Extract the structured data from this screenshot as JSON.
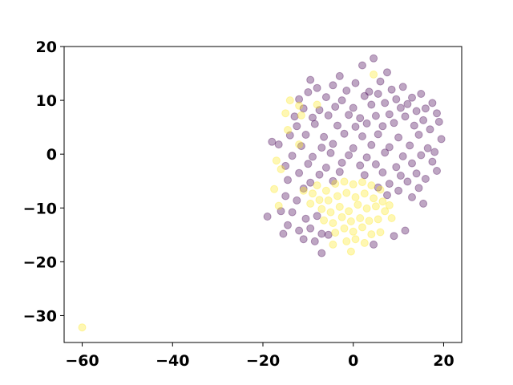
{
  "chart_data": {
    "type": "scatter",
    "title": "",
    "xlabel": "",
    "ylabel": "",
    "xlim": [
      -64,
      24
    ],
    "ylim": [
      -35,
      20
    ],
    "xticks": [
      -60,
      -40,
      -20,
      0,
      20
    ],
    "xtick_labels": [
      "−60",
      "−40",
      "−20",
      "0",
      "20"
    ],
    "yticks": [
      20,
      10,
      0,
      -10,
      -20,
      -30
    ],
    "ytick_labels": [
      "20",
      "10",
      "0",
      "−10",
      "−20",
      "−30"
    ],
    "grid": false,
    "legend": false,
    "point_opacity": 0.35,
    "series": [
      {
        "color": "#440154",
        "points": [
          [
            4.5,
            17.8
          ],
          [
            -9.5,
            13.8
          ],
          [
            -3,
            14.5
          ],
          [
            2,
            16.5
          ],
          [
            7.5,
            15.2
          ],
          [
            -8,
            12.3
          ],
          [
            -4.5,
            12.8
          ],
          [
            0.5,
            13.2
          ],
          [
            6,
            13.5
          ],
          [
            11,
            12.5
          ],
          [
            15,
            11.2
          ],
          [
            -10,
            11.5
          ],
          [
            -1.5,
            11.8
          ],
          [
            3.5,
            11.6
          ],
          [
            8.5,
            12
          ],
          [
            13,
            10.5
          ],
          [
            17.5,
            9.5
          ],
          [
            -12,
            10.2
          ],
          [
            -6,
            10.6
          ],
          [
            -2.5,
            10
          ],
          [
            2.5,
            10.8
          ],
          [
            5.5,
            11.2
          ],
          [
            9.5,
            10.2
          ],
          [
            12,
            9.3
          ],
          [
            16,
            8.5
          ],
          [
            -11,
            8.5
          ],
          [
            -7.5,
            8.2
          ],
          [
            -4,
            8.8
          ],
          [
            0,
            8.6
          ],
          [
            4,
            9.2
          ],
          [
            7,
            9.5
          ],
          [
            10.5,
            8.6
          ],
          [
            14,
            8
          ],
          [
            18.5,
            7.6
          ],
          [
            -13,
            7
          ],
          [
            -9,
            6.8
          ],
          [
            -5.5,
            7.2
          ],
          [
            -1,
            7.3
          ],
          [
            1.5,
            6.7
          ],
          [
            5,
            7.1
          ],
          [
            8,
            7.4
          ],
          [
            11.5,
            7
          ],
          [
            15.5,
            6.3
          ],
          [
            19,
            6
          ],
          [
            -12.5,
            5.2
          ],
          [
            -8.5,
            5.6
          ],
          [
            -3.5,
            5.3
          ],
          [
            0.5,
            5.1
          ],
          [
            3,
            5.7
          ],
          [
            6.5,
            5.2
          ],
          [
            9,
            5.8
          ],
          [
            13.5,
            5.3
          ],
          [
            17,
            4.6
          ],
          [
            -14,
            3.5
          ],
          [
            -10.5,
            3.6
          ],
          [
            -6.5,
            3.2
          ],
          [
            -2,
            3.8
          ],
          [
            2,
            3.3
          ],
          [
            5.5,
            3.7
          ],
          [
            10,
            3.1
          ],
          [
            14.5,
            3.6
          ],
          [
            19.5,
            2.8
          ],
          [
            -18,
            2.3
          ],
          [
            -16.5,
            1.8
          ],
          [
            -11.5,
            1.5
          ],
          [
            -7,
            1.2
          ],
          [
            -4.5,
            1.9
          ],
          [
            0,
            1.1
          ],
          [
            4,
            1.7
          ],
          [
            8,
            1.3
          ],
          [
            12.5,
            1.6
          ],
          [
            16.5,
            1.1
          ],
          [
            -13.5,
            -0.3
          ],
          [
            -9,
            -0.5
          ],
          [
            -5,
            0.2
          ],
          [
            -1,
            -0.2
          ],
          [
            3,
            -0.6
          ],
          [
            7,
            0.3
          ],
          [
            11,
            -0.4
          ],
          [
            15,
            -0.2
          ],
          [
            18,
            0.4
          ],
          [
            -15,
            -2.2
          ],
          [
            -10,
            -1.8
          ],
          [
            -6,
            -2.5
          ],
          [
            -2.5,
            -1.6
          ],
          [
            1.5,
            -2.1
          ],
          [
            5,
            -1.9
          ],
          [
            9.5,
            -2.4
          ],
          [
            13,
            -1.7
          ],
          [
            17.5,
            -1.4
          ],
          [
            -12,
            -3.5
          ],
          [
            -7.5,
            -3.8
          ],
          [
            -3,
            -3.3
          ],
          [
            2.5,
            -3.9
          ],
          [
            6.5,
            -3.4
          ],
          [
            10.5,
            -4
          ],
          [
            14,
            -3.6
          ],
          [
            18.5,
            -3.1
          ],
          [
            -14.5,
            -4.8
          ],
          [
            -9.5,
            -5.3
          ],
          [
            -4.5,
            -5
          ],
          [
            8,
            -5.5
          ],
          [
            12,
            -5.1
          ],
          [
            16,
            -4.6
          ],
          [
            -11,
            -6.4
          ],
          [
            5.5,
            -6.2
          ],
          [
            10,
            -6.8
          ],
          [
            14.5,
            -6.3
          ],
          [
            -15,
            -7.8
          ],
          [
            -12.5,
            -8.6
          ],
          [
            7.5,
            -7.6
          ],
          [
            13,
            -8
          ],
          [
            15.5,
            -9.2
          ],
          [
            -19,
            -11.6
          ],
          [
            -16,
            -10.6
          ],
          [
            -13.5,
            -10.8
          ],
          [
            -10.5,
            -12
          ],
          [
            -8,
            -11.5
          ],
          [
            -14.5,
            -13.2
          ],
          [
            -12,
            -14.2
          ],
          [
            -9.5,
            -13.8
          ],
          [
            -7,
            -14.8
          ],
          [
            -15.5,
            -14.8
          ],
          [
            -11,
            -15.8
          ],
          [
            -8.5,
            -16.2
          ],
          [
            -7,
            -18.4
          ],
          [
            4.5,
            -16.8
          ],
          [
            9,
            -15.2
          ],
          [
            11.5,
            -14.2
          ],
          [
            -5.5,
            -15
          ]
        ]
      },
      {
        "color": "#fde725",
        "points": [
          [
            -60,
            -32.2
          ],
          [
            4.5,
            14.8
          ],
          [
            -14,
            10
          ],
          [
            -12,
            9
          ],
          [
            -8,
            9.2
          ],
          [
            -15,
            7.6
          ],
          [
            -11.5,
            7.2
          ],
          [
            -14.5,
            4.5
          ],
          [
            -12,
            1.8
          ],
          [
            -17,
            -1.2
          ],
          [
            -16,
            -2.8
          ],
          [
            -17.5,
            -6.5
          ],
          [
            -16.5,
            -9.6
          ],
          [
            -11,
            -6.8
          ],
          [
            -8,
            -5.8
          ],
          [
            -6,
            -6.8
          ],
          [
            -4,
            -5.5
          ],
          [
            -2,
            -5.1
          ],
          [
            0,
            -5.6
          ],
          [
            2,
            -5.2
          ],
          [
            4,
            -5.8
          ],
          [
            6,
            -6.6
          ],
          [
            -9,
            -7.3
          ],
          [
            -7.5,
            -8.5
          ],
          [
            -5.5,
            -8.6
          ],
          [
            -3.5,
            -7.8
          ],
          [
            -1.5,
            -7.2
          ],
          [
            0.5,
            -8
          ],
          [
            2.5,
            -7.3
          ],
          [
            4.5,
            -8.2
          ],
          [
            6.5,
            -8.8
          ],
          [
            8,
            -9.5
          ],
          [
            -7,
            -10.2
          ],
          [
            -5,
            -10.8
          ],
          [
            -3,
            -9.8
          ],
          [
            -1,
            -10.6
          ],
          [
            1,
            -9.4
          ],
          [
            3,
            -10.1
          ],
          [
            5,
            -9.7
          ],
          [
            7,
            -10.6
          ],
          [
            -6.5,
            -12.3
          ],
          [
            -4.5,
            -12.8
          ],
          [
            -2.5,
            -11.7
          ],
          [
            -0.5,
            -12.5
          ],
          [
            1.5,
            -11.9
          ],
          [
            3.5,
            -12.4
          ],
          [
            5.5,
            -12.1
          ],
          [
            -4,
            -14.6
          ],
          [
            -2,
            -13.8
          ],
          [
            0,
            -14.4
          ],
          [
            2,
            -13.6
          ],
          [
            4,
            -14.9
          ],
          [
            6,
            -14.5
          ],
          [
            -1.5,
            -16.2
          ],
          [
            0.5,
            -15.8
          ],
          [
            2.5,
            -16.5
          ],
          [
            -4.5,
            -16.8
          ],
          [
            -0.5,
            -18.1
          ],
          [
            8.5,
            -11.9
          ],
          [
            -9.5,
            -9.2
          ]
        ]
      }
    ]
  }
}
